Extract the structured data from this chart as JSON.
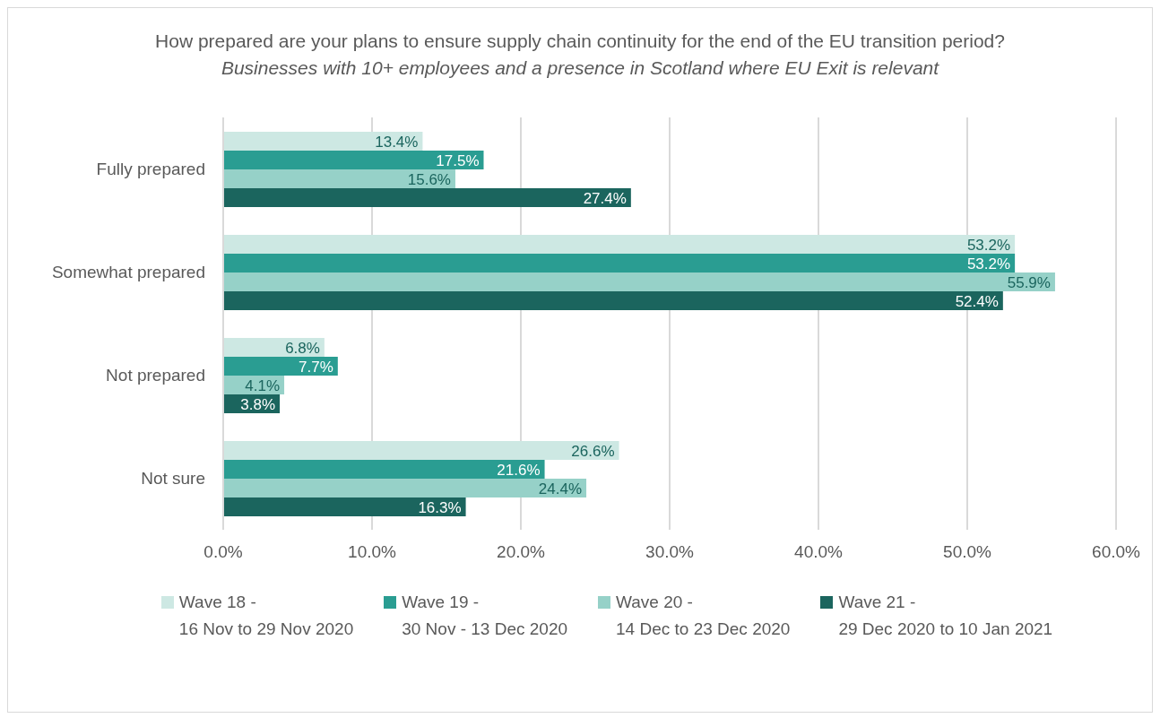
{
  "chart_data": {
    "type": "bar",
    "orientation": "horizontal",
    "title": "How prepared are your plans to ensure supply chain continuity for the end of the EU transition period?",
    "subtitle": "Businesses with 10+ employees and a presence in Scotland where EU Exit is relevant",
    "categories": [
      "Fully prepared",
      "Somewhat prepared",
      "Not prepared",
      "Not sure"
    ],
    "series": [
      {
        "name": "Wave 18 -\n16 Nov to 29 Nov 2020",
        "color": "#cde8e3",
        "values": [
          13.4,
          53.2,
          6.8,
          26.6
        ],
        "value_labels": [
          "13.4%",
          "53.2%",
          "6.8%",
          "26.6%"
        ]
      },
      {
        "name": "Wave 19 -\n30 Nov - 13 Dec 2020",
        "color": "#2a9d92",
        "values": [
          17.5,
          53.2,
          7.7,
          21.6
        ],
        "value_labels": [
          "17.5%",
          "53.2%",
          "7.7%",
          "21.6%"
        ]
      },
      {
        "name": "Wave 20 -\n14 Dec to 23 Dec 2020",
        "color": "#96d1c8",
        "values": [
          15.6,
          55.9,
          4.1,
          24.4
        ],
        "value_labels": [
          "15.6%",
          "55.9%",
          "4.1%",
          "24.4%"
        ]
      },
      {
        "name": "Wave 21 -\n29 Dec 2020 to 10 Jan 2021",
        "color": "#1b655e",
        "values": [
          27.4,
          52.4,
          3.8,
          16.3
        ],
        "value_labels": [
          "27.4%",
          "52.4%",
          "3.8%",
          "16.3%"
        ]
      }
    ],
    "xlim": [
      0,
      60
    ],
    "xticks": [
      {
        "value": 0,
        "label": "0.0%"
      },
      {
        "value": 10,
        "label": "10.0%"
      },
      {
        "value": 20,
        "label": "20.0%"
      },
      {
        "value": 30,
        "label": "30.0%"
      },
      {
        "value": 40,
        "label": "40.0%"
      },
      {
        "value": 50,
        "label": "50.0%"
      },
      {
        "value": 60,
        "label": "60.0%"
      }
    ],
    "grid": "x",
    "legend": "bottom"
  }
}
